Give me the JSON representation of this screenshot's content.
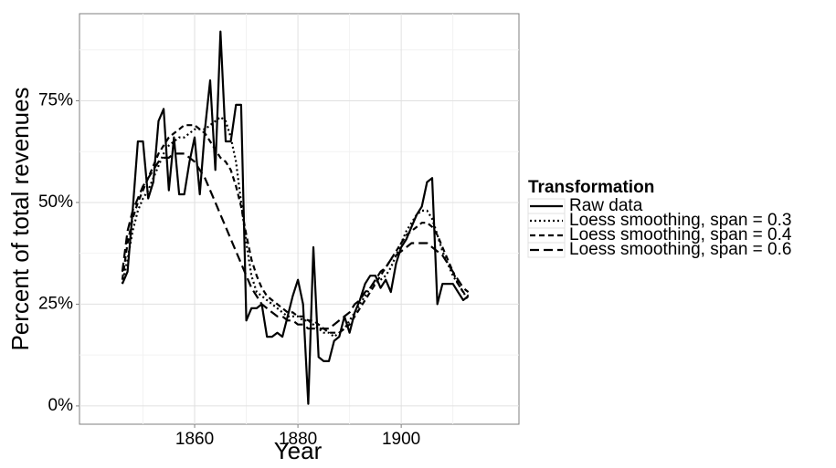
{
  "chart_data": {
    "type": "line",
    "xlabel": "Year",
    "ylabel": "Percent of total revenues",
    "legend_title": "Transformation",
    "legend": "right",
    "grid": true,
    "x": [
      1846,
      1847,
      1848,
      1849,
      1850,
      1851,
      1852,
      1853,
      1854,
      1855,
      1856,
      1857,
      1858,
      1859,
      1860,
      1861,
      1862,
      1863,
      1864,
      1865,
      1866,
      1867,
      1868,
      1869,
      1870,
      1871,
      1872,
      1873,
      1874,
      1875,
      1876,
      1877,
      1878,
      1879,
      1880,
      1881,
      1882,
      1883,
      1884,
      1885,
      1886,
      1887,
      1888,
      1889,
      1890,
      1891,
      1892,
      1893,
      1894,
      1895,
      1896,
      1897,
      1898,
      1899,
      1900,
      1901,
      1902,
      1903,
      1904,
      1905,
      1906,
      1907,
      1908,
      1909,
      1910,
      1911,
      1912,
      1913
    ],
    "series": [
      {
        "name": "Raw data",
        "color": "#000000",
        "dash": "solid",
        "values": [
          30,
          33,
          48,
          65,
          65,
          51,
          55,
          70,
          73,
          53,
          66,
          52,
          52,
          60,
          66,
          52,
          68,
          80,
          58,
          92,
          65,
          65,
          74,
          74,
          21,
          24,
          24,
          25,
          17,
          17,
          18,
          17,
          22,
          27,
          31,
          25,
          0.5,
          39,
          12,
          11,
          11,
          16,
          17,
          22,
          18,
          23,
          26,
          30,
          32,
          32,
          29,
          31,
          28,
          35,
          39,
          41,
          44,
          47,
          49,
          55,
          56,
          25,
          30,
          30,
          30,
          28,
          26,
          27
        ]
      },
      {
        "name": "Loess smoothing, span = 0.3",
        "color": "#000000",
        "dash": "dotted",
        "values": [
          30,
          36,
          43,
          48,
          51,
          53,
          56,
          59,
          62,
          64,
          65,
          66,
          66,
          67,
          68,
          68,
          68,
          69,
          70,
          71,
          70,
          66,
          60,
          50,
          40,
          32,
          28,
          27,
          26,
          25,
          24,
          23,
          22,
          22,
          22,
          21,
          21,
          20,
          19,
          18,
          18,
          17,
          18,
          19,
          21,
          23,
          25,
          27,
          29,
          30,
          31,
          32,
          34,
          37,
          40,
          43,
          45,
          47,
          48,
          48,
          46,
          42,
          38,
          35,
          32,
          30,
          28,
          26
        ]
      },
      {
        "name": "Loess smoothing, span = 0.4",
        "color": "#000000",
        "dash": "dashed",
        "values": [
          31,
          40,
          46,
          50,
          53,
          56,
          59,
          62,
          64,
          66,
          67,
          68,
          69,
          69,
          69,
          68,
          67,
          65,
          63,
          61,
          60,
          58,
          54,
          49,
          42,
          36,
          32,
          29,
          27,
          26,
          25,
          24,
          23,
          23,
          22,
          22,
          21,
          21,
          20,
          19,
          18,
          18,
          18,
          19,
          20,
          22,
          24,
          26,
          28,
          30,
          32,
          34,
          36,
          38,
          40,
          42,
          43,
          44,
          45,
          45,
          44,
          42,
          39,
          36,
          33,
          30,
          28,
          27
        ]
      },
      {
        "name": "Loess smoothing, span = 0.6",
        "color": "#000000",
        "dash": "longdash",
        "values": [
          33,
          43,
          48,
          51,
          54,
          56,
          58,
          60,
          61,
          61,
          62,
          62,
          62,
          61,
          60,
          58,
          56,
          53,
          50,
          47,
          44,
          41,
          38,
          35,
          32,
          29,
          27,
          25,
          24,
          23,
          22,
          22,
          21,
          21,
          20,
          20,
          19,
          19,
          19,
          19,
          19,
          20,
          21,
          22,
          23,
          25,
          26,
          28,
          29,
          31,
          33,
          34,
          36,
          37,
          38,
          39,
          40,
          40,
          40,
          40,
          39,
          38,
          37,
          35,
          33,
          31,
          29,
          28
        ]
      }
    ],
    "xlim": [
      1837.7,
      1922.8
    ],
    "xticks": [
      1860,
      1880,
      1900
    ],
    "ylim": [
      -4.5,
      96.4
    ],
    "yticks": [
      {
        "value": 0,
        "label": "0%"
      },
      {
        "value": 25,
        "label": "25%"
      },
      {
        "value": 50,
        "label": "50%"
      },
      {
        "value": 75,
        "label": "75%"
      }
    ]
  }
}
